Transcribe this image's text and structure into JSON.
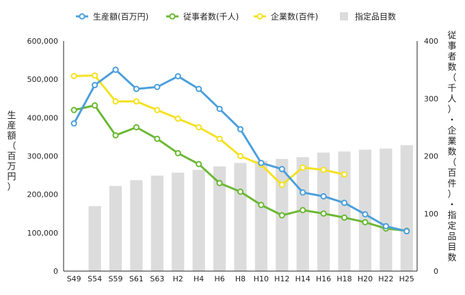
{
  "chart_data": {
    "type": "bar+line",
    "categories": [
      "S49",
      "S54",
      "S59",
      "S61",
      "S63",
      "H2",
      "H4",
      "H6",
      "H8",
      "H10",
      "H12",
      "H14",
      "H16",
      "H18",
      "H20",
      "H22",
      "H25"
    ],
    "series": [
      {
        "name": "生産額(百万円)",
        "axis": "left",
        "kind": "line",
        "color": "#4a9fdc",
        "values": [
          385000,
          485000,
          525000,
          475000,
          480000,
          508000,
          475000,
          423000,
          370000,
          282000,
          266000,
          205000,
          195000,
          178000,
          148000,
          117000,
          104000
        ]
      },
      {
        "name": "従事者数(千人)",
        "axis": "right",
        "kind": "line",
        "color": "#6ab833",
        "values": [
          280,
          288,
          236,
          250,
          230,
          205,
          186,
          153,
          138,
          115,
          97,
          106,
          100,
          93,
          85,
          74,
          70
        ]
      },
      {
        "name": "企業数(百件)",
        "axis": "right",
        "kind": "line",
        "color": "#f5e11f",
        "values": [
          339,
          340,
          295,
          295,
          280,
          265,
          250,
          230,
          200,
          185,
          150,
          180,
          176,
          168,
          null,
          null,
          null
        ]
      },
      {
        "name": "指定品目数",
        "axis": "right",
        "kind": "bar",
        "color": "#dcdcdc",
        "values": [
          null,
          113,
          148,
          158,
          166,
          171,
          176,
          182,
          188,
          192,
          195,
          198,
          206,
          208,
          211,
          213,
          219
        ]
      }
    ],
    "left_axis": {
      "label": "生産額（百万円）",
      "ylim": [
        0,
        600000
      ],
      "ticks": [
        "0",
        "100,000",
        "200,000",
        "300,000",
        "400,000",
        "500,000",
        "600,000"
      ]
    },
    "right_axis": {
      "label": "従事者数（千人）・企業数（百件）・指定品目数",
      "ylim": [
        0,
        400
      ],
      "ticks": [
        "0",
        "100",
        "200",
        "300",
        "400"
      ]
    },
    "legend": {
      "position": "top"
    }
  }
}
